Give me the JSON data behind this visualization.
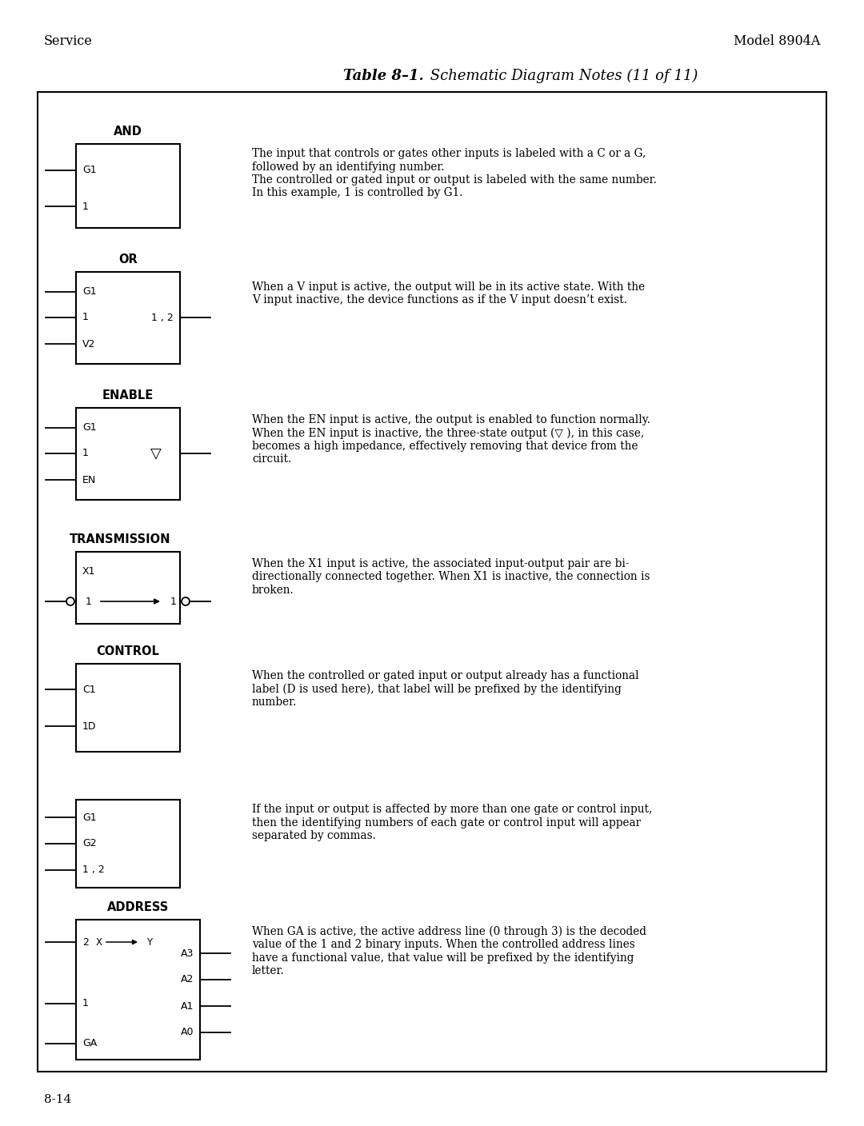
{
  "page_title_left": "Service",
  "page_title_right": "Model 8904A",
  "table_title_bold": "Table 8–1.",
  "table_title_italic": " Schematic Diagram Notes (11 of 11)",
  "page_number": "8-14",
  "background": "#ffffff",
  "sections": [
    {
      "label": "AND",
      "type": "and",
      "inputs_left": [
        "G1",
        "1"
      ],
      "inputs_right": [],
      "desc_lines": [
        "The input that controls or gates other inputs is labeled with a C or a G,",
        "followed by an identifying number.",
        "The controlled or gated input or output is labeled with the same number.",
        "In this example, 1 is controlled by G1."
      ]
    },
    {
      "label": "OR",
      "type": "or",
      "inputs_left": [
        "G1",
        "1",
        "V2"
      ],
      "inputs_right": [
        "1 , 2"
      ],
      "desc_lines": [
        "When a V input is active, the output will be in its active state. With the",
        "V input inactive, the device functions as if the V input doesn’t exist."
      ]
    },
    {
      "label": "ENABLE",
      "type": "enable",
      "inputs_left": [
        "G1",
        "1",
        "EN"
      ],
      "inputs_right": [
        "▽"
      ],
      "desc_lines": [
        "When the EN input is active, the output is enabled to function normally.",
        "When the EN input is inactive, the three-state output (▽ ), in this case,",
        "becomes a high impedance, effectively removing that device from the",
        "circuit."
      ]
    },
    {
      "label": "TRANSMISSION",
      "type": "transmission",
      "inputs_left": [
        "X1"
      ],
      "inputs_right": [],
      "desc_lines": [
        "When the X1 input is active, the associated input-output pair are bi-",
        "directionally connected together. When X1 is inactive, the connection is",
        "broken."
      ]
    },
    {
      "label": "CONTROL",
      "type": "control1",
      "inputs_left": [
        "C1",
        "1D"
      ],
      "inputs_right": [],
      "desc_lines": [
        "When the controlled or gated input or output already has a functional",
        "label (D is used here), that label will be prefixed by the identifying",
        "number."
      ]
    },
    {
      "label": "",
      "type": "control2",
      "inputs_left": [
        "G1",
        "G2",
        "1 , 2"
      ],
      "inputs_right": [],
      "desc_lines": [
        "If the input or output is affected by more than one gate or control input,",
        "then the identifying numbers of each gate or control input will appear",
        "separated by commas."
      ]
    },
    {
      "label": "ADDRESS",
      "type": "address",
      "inputs_left": [
        "2",
        "1",
        "GA"
      ],
      "inputs_right": [
        "A3",
        "A2",
        "A1",
        "A0"
      ],
      "desc_lines": [
        "When GA is active, the active address line (0 through 3) is the decoded",
        "value of the 1 and 2 binary inputs. When the controlled address lines",
        "have a functional value, that value will be prefixed by the identifying",
        "letter."
      ]
    }
  ]
}
